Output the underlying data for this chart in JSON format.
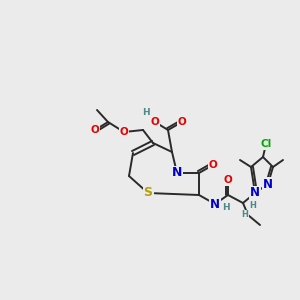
{
  "bg_color": "#ebebeb",
  "bond_color": "#2a2a2a",
  "bond_width": 1.4,
  "atom_colors": {
    "O": "#e60000",
    "N": "#0000cc",
    "S": "#b8a000",
    "Cl": "#00aa00",
    "H": "#4d8888",
    "C": "#2a2a2a"
  },
  "fs": 7.5
}
